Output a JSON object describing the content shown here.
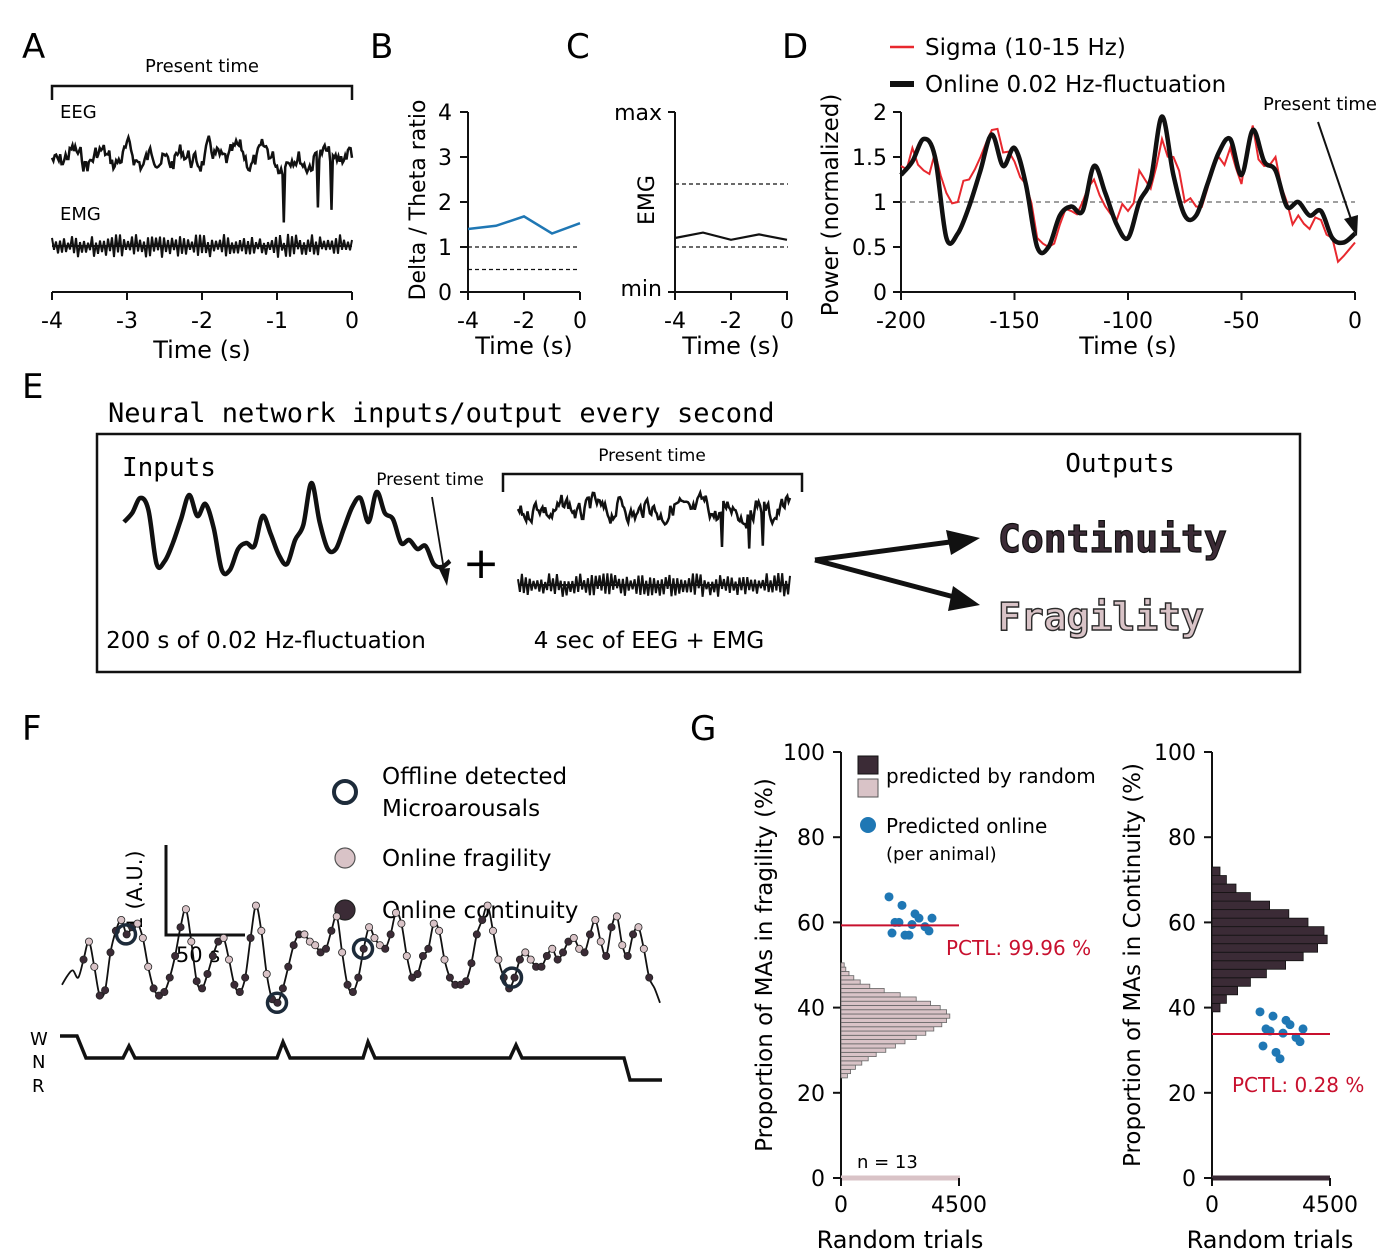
{
  "panels": {
    "A": {
      "letter": "A",
      "present_time": "Present time",
      "eeg_label": "EEG",
      "emg_label": "EMG",
      "xlabel": "Time (s)",
      "xticks": [
        "-4",
        "-3",
        "-2",
        "-1",
        "0"
      ]
    },
    "B": {
      "letter": "B",
      "ylabel": "Delta / Theta ratio",
      "xlabel": "Time (s)",
      "xticks": [
        "-4",
        "-2",
        "0"
      ],
      "yticks": [
        "0",
        "1",
        "2",
        "3",
        "4"
      ]
    },
    "C": {
      "letter": "C",
      "ylabel": "EMG",
      "xlabel": "Time (s)",
      "xticks": [
        "-4",
        "-2",
        "0"
      ],
      "ymax_label": "max",
      "ymin_label": "min"
    },
    "D": {
      "letter": "D",
      "legend_sigma": "Sigma (10-15 Hz)",
      "legend_online": "Online 0.02 Hz-fluctuation",
      "present_time": "Present time",
      "ylabel": "Power (normalized)",
      "xlabel": "Time (s)",
      "xticks": [
        "-200",
        "-150",
        "-100",
        "-50",
        "0"
      ],
      "yticks": [
        "0",
        "0.5",
        "1",
        "1.5",
        "2"
      ]
    },
    "E": {
      "letter": "E",
      "title": "Neural network inputs/output every second",
      "inputs": "Inputs",
      "outputs": "Outputs",
      "present_time_1": "Present time",
      "present_time_2": "Present time",
      "caption_1": "200 s of 0.02 Hz-fluctuation",
      "caption_2": "4 sec of EEG + EMG",
      "plus": "+",
      "continuity": "Continuity",
      "fragility": "Fragility"
    },
    "F": {
      "letter": "F",
      "legend_offline": "Offline detected",
      "legend_offline_2": "Microarousals",
      "legend_fragility": "Online fragility",
      "legend_continuity": "Online continuity",
      "scale_y": "1 (A.U.)",
      "scale_x": "50 s",
      "hyp_w": "W",
      "hyp_n": "N",
      "hyp_r": "R"
    },
    "G": {
      "letter": "G",
      "left": {
        "ylabel": "Proportion of MAs in fragility (%)",
        "xlabel": "Random trials",
        "xticks": [
          "0",
          "4500"
        ],
        "yticks": [
          "0",
          "20",
          "40",
          "60",
          "80",
          "100"
        ],
        "legend_random": "predicted by random",
        "legend_online": "Predicted online",
        "legend_online_2": "(per animal)",
        "pctl": "PCTL: 99.96 %",
        "n": "n = 13"
      },
      "right": {
        "ylabel": "Proportion of MAs in Continuity (%)",
        "xlabel": "Random trials",
        "xticks": [
          "0",
          "4500"
        ],
        "yticks": [
          "0",
          "20",
          "40",
          "60",
          "80",
          "100"
        ],
        "pctl": "PCTL: 0.28 %"
      }
    }
  },
  "colors": {
    "blue": "#1f77b4",
    "red": "#e8282e",
    "dark_red": "#c8102e",
    "continuity": "#3b2b36",
    "fragility": "#d9c3c7",
    "mark_dark": "#1d2b3a"
  },
  "chart_data": [
    {
      "panel": "B",
      "type": "line",
      "x": [
        -4,
        -3,
        -2,
        -1,
        0
      ],
      "series": [
        {
          "values": [
            1.4,
            1.47,
            1.68,
            1.3,
            1.53
          ]
        }
      ],
      "thresholds": [
        1.0,
        0.5
      ],
      "xlim": [
        -4,
        0
      ],
      "ylim": [
        0,
        4
      ]
    },
    {
      "panel": "C",
      "type": "line",
      "x": [
        -4,
        -3,
        -2,
        -1,
        0
      ],
      "series": [
        {
          "values": [
            0.3,
            0.33,
            0.29,
            0.32,
            0.29
          ]
        }
      ],
      "thresholds": [
        0.6,
        0.25
      ],
      "ylim": [
        0,
        1
      ]
    },
    {
      "panel": "D",
      "type": "line",
      "x": [
        -200,
        -195,
        -190,
        -185,
        -180,
        -175,
        -170,
        -165,
        -160,
        -155,
        -150,
        -145,
        -140,
        -135,
        -130,
        -125,
        -120,
        -115,
        -110,
        -105,
        -100,
        -95,
        -90,
        -85,
        -80,
        -75,
        -70,
        -65,
        -60,
        -55,
        -50,
        -45,
        -40,
        -35,
        -30,
        -25,
        -20,
        -15,
        -10,
        -5,
        0
      ],
      "series": [
        {
          "name": "Sigma (10-15 Hz)",
          "values": [
            1.4,
            1.6,
            1.35,
            1.55,
            1.1,
            1.0,
            1.25,
            1.5,
            1.8,
            1.55,
            1.45,
            1.2,
            0.6,
            0.5,
            0.75,
            0.9,
            1.0,
            1.25,
            0.95,
            0.8,
            0.9,
            1.35,
            1.15,
            1.7,
            1.5,
            1.0,
            0.95,
            1.15,
            1.5,
            1.6,
            1.2,
            1.85,
            1.4,
            1.5,
            1.0,
            0.85,
            0.7,
            0.8,
            0.6,
            0.4,
            0.55
          ]
        },
        {
          "name": "Online 0.02 Hz-fluctuation",
          "values": [
            1.3,
            1.45,
            1.7,
            1.5,
            0.6,
            0.65,
            0.95,
            1.35,
            1.75,
            1.4,
            1.6,
            1.2,
            0.5,
            0.5,
            0.85,
            0.95,
            0.9,
            1.4,
            1.1,
            0.75,
            0.6,
            1.0,
            1.25,
            1.95,
            1.3,
            0.85,
            0.85,
            1.2,
            1.55,
            1.7,
            1.3,
            1.8,
            1.45,
            1.35,
            0.95,
            1.0,
            0.85,
            0.9,
            0.6,
            0.55,
            0.65
          ]
        }
      ],
      "threshold": 1.0,
      "xlim": [
        -200,
        0
      ],
      "ylim": [
        0,
        2
      ]
    },
    {
      "panel": "G-left",
      "type": "scatter",
      "series": [
        {
          "name": "predicted by random",
          "hist_bins": [
            [
              24,
              4
            ],
            [
              25,
              6
            ],
            [
              26,
              9
            ],
            [
              27,
              13
            ],
            [
              28,
              17
            ],
            [
              29,
              22
            ],
            [
              30,
              28
            ],
            [
              31,
              34
            ],
            [
              32,
              40
            ],
            [
              33,
              47
            ],
            [
              34,
              53
            ],
            [
              35,
              58
            ],
            [
              36,
              63
            ],
            [
              37,
              66
            ],
            [
              38,
              68
            ],
            [
              39,
              66
            ],
            [
              40,
              62
            ],
            [
              41,
              56
            ],
            [
              42,
              47
            ],
            [
              43,
              37
            ],
            [
              44,
              27
            ],
            [
              45,
              18
            ],
            [
              46,
              12
            ],
            [
              47,
              8
            ],
            [
              48,
              5
            ],
            [
              49,
              3
            ],
            [
              50,
              2
            ]
          ]
        },
        {
          "name": "Predicted online",
          "values": [
            66,
            64,
            62,
            61,
            61,
            60,
            60,
            59.5,
            59,
            58,
            57.5,
            57,
            57
          ]
        }
      ],
      "threshold": 59.3,
      "xlim": [
        0,
        4500
      ],
      "ylim": [
        0,
        100
      ]
    },
    {
      "panel": "G-right",
      "type": "scatter",
      "series": [
        {
          "hist_bins": [
            [
              40,
              5
            ],
            [
              42,
              9
            ],
            [
              44,
              16
            ],
            [
              46,
              24
            ],
            [
              48,
              34
            ],
            [
              50,
              46
            ],
            [
              52,
              57
            ],
            [
              54,
              66
            ],
            [
              56,
              72
            ],
            [
              58,
              70
            ],
            [
              60,
              60
            ],
            [
              62,
              48
            ],
            [
              64,
              36
            ],
            [
              66,
              24
            ],
            [
              68,
              15
            ],
            [
              70,
              9
            ],
            [
              72,
              5
            ]
          ]
        },
        {
          "name": "Predicted online",
          "values": [
            39,
            38,
            37,
            36,
            35,
            35,
            34.5,
            34,
            33,
            32,
            31,
            29.5,
            28
          ]
        }
      ],
      "threshold": 33.8,
      "xlim": [
        0,
        4500
      ],
      "ylim": [
        0,
        100
      ]
    }
  ]
}
